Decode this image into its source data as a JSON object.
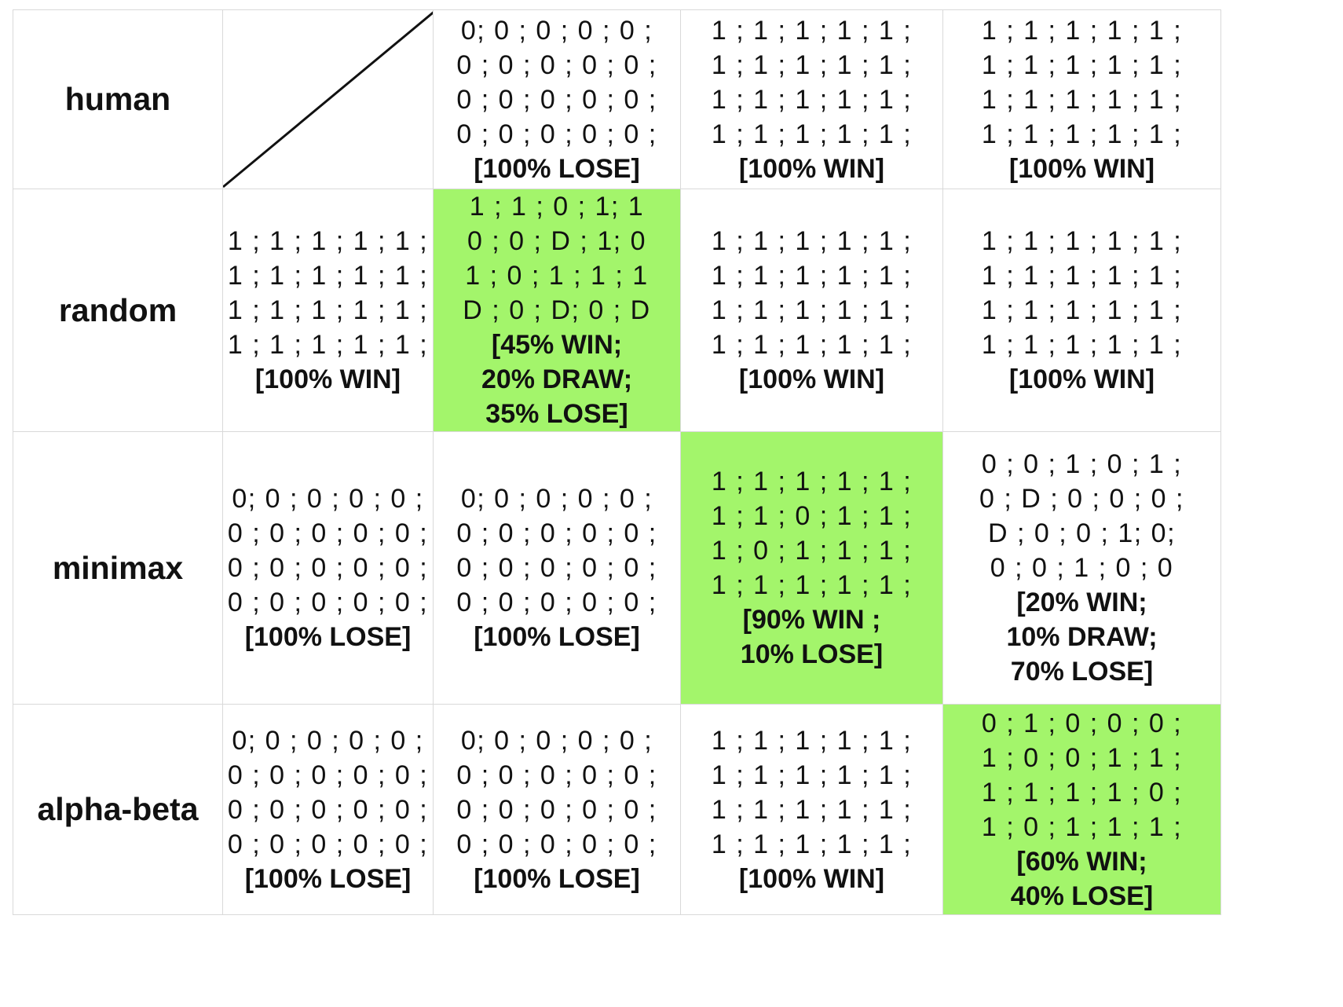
{
  "rows": [
    {
      "label": "human",
      "cells": [
        {
          "diagonal": true
        },
        {
          "lines": [
            "0; 0 ; 0 ; 0 ; 0 ;",
            "0 ; 0 ; 0 ; 0 ; 0 ;",
            "0 ; 0 ; 0 ; 0 ; 0 ;",
            "0 ; 0 ; 0 ; 0 ; 0 ;"
          ],
          "result": [
            "[100% LOSE]"
          ],
          "highlight": false
        },
        {
          "lines": [
            "1 ; 1 ; 1 ; 1 ; 1 ;",
            "1 ; 1 ; 1 ; 1 ; 1 ;",
            "1 ; 1 ; 1 ; 1 ; 1 ;",
            "1 ; 1 ; 1 ; 1 ; 1 ;"
          ],
          "result": [
            "[100% WIN]"
          ],
          "highlight": false
        },
        {
          "lines": [
            "1 ; 1 ; 1 ; 1 ; 1 ;",
            "1 ; 1 ; 1 ; 1 ; 1 ;",
            "1 ; 1 ; 1 ; 1 ; 1 ;",
            "1 ; 1 ; 1 ; 1 ; 1 ;"
          ],
          "result": [
            "[100% WIN]"
          ],
          "highlight": false
        }
      ]
    },
    {
      "label": "random",
      "cells": [
        {
          "lines": [
            "1 ; 1 ; 1 ; 1 ; 1 ;",
            "1 ; 1 ; 1 ; 1 ; 1 ;",
            "1 ; 1 ; 1 ; 1 ; 1 ;",
            "1 ; 1 ; 1 ; 1 ; 1 ;"
          ],
          "result": [
            "[100% WIN]"
          ],
          "highlight": false
        },
        {
          "lines": [
            "1 ; 1 ; 0 ; 1; 1",
            "0 ; 0 ; D ; 1; 0",
            "1 ; 0 ; 1 ; 1 ; 1",
            "D ; 0 ; D; 0 ; D"
          ],
          "result": [
            "[45% WIN;",
            "20% DRAW;",
            "35% LOSE]"
          ],
          "highlight": true
        },
        {
          "lines": [
            "1 ; 1 ; 1 ; 1 ; 1 ;",
            "1 ; 1 ; 1 ; 1 ; 1 ;",
            "1 ; 1 ; 1 ; 1 ; 1 ;",
            "1 ; 1 ; 1 ; 1 ; 1 ;"
          ],
          "result": [
            "[100% WIN]"
          ],
          "highlight": false
        },
        {
          "lines": [
            "1 ; 1 ; 1 ; 1 ; 1 ;",
            "1 ; 1 ; 1 ; 1 ; 1 ;",
            "1 ; 1 ; 1 ; 1 ; 1 ;",
            "1 ; 1 ; 1 ; 1 ; 1 ;"
          ],
          "result": [
            "[100% WIN]"
          ],
          "highlight": false
        }
      ]
    },
    {
      "label": "minimax",
      "cells": [
        {
          "lines": [
            "0; 0 ; 0 ; 0 ; 0 ;",
            "0 ; 0 ; 0 ; 0 ; 0 ;",
            "0 ; 0 ; 0 ; 0 ; 0 ;",
            "0 ; 0 ; 0 ; 0 ; 0 ;"
          ],
          "result": [
            "[100% LOSE]"
          ],
          "highlight": false
        },
        {
          "lines": [
            "0; 0 ; 0 ; 0 ; 0 ;",
            "0 ; 0 ; 0 ; 0 ; 0 ;",
            "0 ; 0 ; 0 ; 0 ; 0 ;",
            "0 ; 0 ; 0 ; 0 ; 0 ;"
          ],
          "result": [
            "[100% LOSE]"
          ],
          "highlight": false
        },
        {
          "lines": [
            "1 ; 1 ; 1 ; 1 ; 1 ;",
            "1 ; 1 ; 0 ; 1 ; 1 ;",
            "1 ; 0 ; 1 ; 1 ; 1 ;",
            "1 ; 1 ; 1 ; 1 ; 1 ;"
          ],
          "result": [
            "[90% WIN ;",
            "10% LOSE]"
          ],
          "highlight": true
        },
        {
          "lines": [
            "0 ; 0 ; 1 ; 0 ; 1 ;",
            "0 ; D ; 0 ; 0 ; 0 ;",
            "D ; 0 ; 0 ; 1; 0;",
            "0 ; 0 ; 1 ; 0 ; 0"
          ],
          "result": [
            "[20% WIN;",
            "10% DRAW;",
            "70% LOSE]"
          ],
          "highlight": false
        }
      ]
    },
    {
      "label": "alpha-beta",
      "cells": [
        {
          "lines": [
            "0; 0 ; 0 ; 0 ; 0 ;",
            "0 ; 0 ; 0 ; 0 ; 0 ;",
            "0 ; 0 ; 0 ; 0 ; 0 ;",
            "0 ; 0 ; 0 ; 0 ; 0 ;"
          ],
          "result": [
            "[100% LOSE]"
          ],
          "highlight": false
        },
        {
          "lines": [
            "0; 0 ; 0 ; 0 ; 0 ;",
            "0 ; 0 ; 0 ; 0 ; 0 ;",
            "0 ; 0 ; 0 ; 0 ; 0 ;",
            "0 ; 0 ; 0 ; 0 ; 0 ;"
          ],
          "result": [
            "[100% LOSE]"
          ],
          "highlight": false
        },
        {
          "lines": [
            "1 ; 1 ; 1 ; 1 ; 1 ;",
            "1 ; 1 ; 1 ; 1 ; 1 ;",
            "1 ; 1 ; 1 ; 1 ; 1 ;",
            "1 ; 1 ; 1 ; 1 ; 1 ;"
          ],
          "result": [
            "[100% WIN]"
          ],
          "highlight": false
        },
        {
          "lines": [
            "0 ; 1 ; 0 ; 0 ; 0 ;",
            "1 ; 0 ; 0 ; 1 ; 1 ;",
            "1 ; 1 ; 1 ; 1 ; 0 ;",
            "1 ; 0 ; 1 ; 1 ; 1 ;"
          ],
          "result": [
            "[60% WIN;",
            "40% LOSE]"
          ],
          "highlight": true
        }
      ]
    }
  ],
  "colors": {
    "highlight": "#a3f56b",
    "grid_line": "#d9d9d9"
  }
}
